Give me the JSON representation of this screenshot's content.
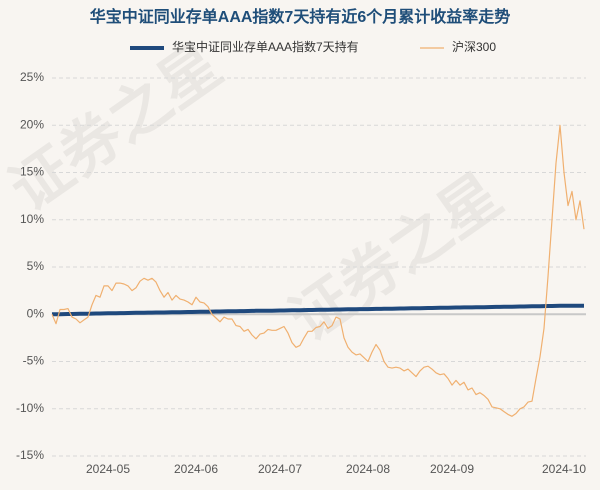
{
  "chart_data": {
    "type": "line",
    "title": "华宝中证同业存单AAA指数7天持有近6个月累计收益率走势",
    "watermark": "证券之星",
    "categories": [
      null,
      null,
      null,
      null,
      null,
      null,
      null,
      null,
      null,
      null,
      null,
      null,
      null,
      null,
      "2024-05",
      null,
      null,
      null,
      null,
      null,
      null,
      null,
      null,
      null,
      null,
      null,
      null,
      null,
      null,
      null,
      null,
      null,
      null,
      null,
      null,
      null,
      "2024-06",
      null,
      null,
      null,
      null,
      null,
      null,
      null,
      null,
      null,
      null,
      null,
      null,
      null,
      null,
      null,
      null,
      null,
      null,
      null,
      null,
      "2024-07",
      null,
      null,
      null,
      null,
      null,
      null,
      null,
      null,
      null,
      null,
      null,
      null,
      null,
      null,
      null,
      null,
      null,
      null,
      null,
      null,
      null,
      "2024-08",
      null,
      null,
      null,
      null,
      null,
      null,
      null,
      null,
      null,
      null,
      null,
      null,
      null,
      null,
      null,
      null,
      null,
      null,
      null,
      null,
      "2024-09",
      null,
      null,
      null,
      null,
      null,
      null,
      null,
      null,
      null,
      null,
      null,
      null,
      null,
      null,
      null,
      null,
      null,
      null,
      null,
      null,
      null,
      null,
      null,
      null,
      null,
      null,
      null,
      "2024-10",
      null,
      null,
      null,
      null,
      null
    ],
    "series": [
      {
        "name": "华宝中证同业存单AAA指数7天持有",
        "color": "#1f497d",
        "values": [
          0,
          0.01,
          0.01,
          0.02,
          0.03,
          0.03,
          0.04,
          0.05,
          0.05,
          0.06,
          0.07,
          0.08,
          0.08,
          0.09,
          0.1,
          0.1,
          0.11,
          0.12,
          0.12,
          0.13,
          0.14,
          0.15,
          0.15,
          0.16,
          0.17,
          0.17,
          0.18,
          0.19,
          0.19,
          0.2,
          0.21,
          0.22,
          0.22,
          0.23,
          0.24,
          0.24,
          0.25,
          0.26,
          0.26,
          0.27,
          0.28,
          0.29,
          0.29,
          0.3,
          0.31,
          0.31,
          0.32,
          0.33,
          0.33,
          0.34,
          0.35,
          0.36,
          0.36,
          0.37,
          0.38,
          0.38,
          0.39,
          0.4,
          0.4,
          0.41,
          0.42,
          0.43,
          0.43,
          0.44,
          0.45,
          0.45,
          0.46,
          0.47,
          0.47,
          0.48,
          0.49,
          0.5,
          0.5,
          0.51,
          0.52,
          0.52,
          0.53,
          0.54,
          0.54,
          0.55,
          0.56,
          0.57,
          0.57,
          0.58,
          0.59,
          0.59,
          0.6,
          0.61,
          0.61,
          0.62,
          0.63,
          0.64,
          0.64,
          0.65,
          0.66,
          0.66,
          0.67,
          0.68,
          0.68,
          0.69,
          0.7,
          0.71,
          0.71,
          0.72,
          0.73,
          0.73,
          0.74,
          0.75,
          0.75,
          0.76,
          0.77,
          0.78,
          0.78,
          0.79,
          0.8,
          0.8,
          0.81,
          0.82,
          0.82,
          0.83,
          0.84,
          0.85,
          0.85,
          0.86,
          0.87,
          0.87,
          0.88,
          0.89,
          0.89,
          0.9,
          0.9,
          0.9,
          0.91,
          0.91
        ]
      },
      {
        "name": "沪深300",
        "color": "#f0b070",
        "values": [
          0,
          -1,
          0.5,
          0.5,
          0.6,
          -0.3,
          -0.5,
          -0.9,
          -0.6,
          -0.3,
          1,
          2,
          1.8,
          3,
          3,
          2.5,
          3.3,
          3.3,
          3.2,
          3,
          2.5,
          2.8,
          3.5,
          3.8,
          3.6,
          3.8,
          3.4,
          2.5,
          1.8,
          2.3,
          1.5,
          2,
          1.6,
          1.5,
          1.3,
          1,
          1.8,
          1.3,
          1.2,
          0.8,
          0,
          -0.4,
          -0.8,
          -0.3,
          -0.5,
          -0.5,
          -1.2,
          -1.3,
          -1.8,
          -1.6,
          -2.2,
          -2.6,
          -2.1,
          -2,
          -1.6,
          -1.7,
          -1.7,
          -1.5,
          -1.3,
          -2,
          -3,
          -3.5,
          -3.3,
          -2.5,
          -1.8,
          -1.8,
          -1.4,
          -1.3,
          -0.8,
          -1.5,
          -1.2,
          -0.3,
          -0.5,
          -2.5,
          -3.5,
          -4,
          -4.3,
          -4.2,
          -4.6,
          -5,
          -4,
          -3.2,
          -3.8,
          -5,
          -5.6,
          -5.7,
          -5.6,
          -5.7,
          -6,
          -5.8,
          -6.2,
          -6.6,
          -6,
          -5.6,
          -5.5,
          -5.8,
          -6.2,
          -6.4,
          -6.3,
          -6.8,
          -7.5,
          -7,
          -7.5,
          -7.2,
          -8,
          -7.8,
          -8.5,
          -8.3,
          -8.6,
          -9,
          -9.8,
          -9.9,
          -10,
          -10.3,
          -10.6,
          -10.8,
          -10.5,
          -10,
          -9.8,
          -9.3,
          -9.2,
          -6.8,
          -4.5,
          -1.5,
          4,
          10,
          16,
          20,
          15,
          11.5,
          13,
          10,
          12,
          9
        ]
      }
    ],
    "ylim": [
      -15,
      25
    ],
    "yticks": [
      {
        "value": -15,
        "label": "-15%"
      },
      {
        "value": -10,
        "label": "-10%"
      },
      {
        "value": -5,
        "label": "-5%"
      },
      {
        "value": 0,
        "label": "0%"
      },
      {
        "value": 5,
        "label": "5%"
      },
      {
        "value": 10,
        "label": "10%"
      },
      {
        "value": 15,
        "label": "15%"
      },
      {
        "value": 20,
        "label": "20%"
      },
      {
        "value": 25,
        "label": "25%"
      }
    ],
    "grid": true
  }
}
